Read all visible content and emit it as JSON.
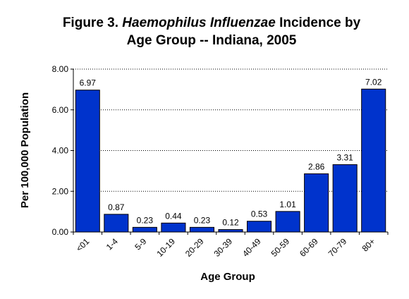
{
  "chart_data": {
    "type": "bar",
    "title": {
      "line1_prefix": "Figure 3.",
      "line1_italic": "Haemophilus Influenzae",
      "line1_suffix": "Incidence by",
      "line2": "Age Group -- Indiana, 2005"
    },
    "xlabel": "Age Group",
    "ylabel": "Per 100,000 Population",
    "categories": [
      "<01",
      "1-4",
      "5-9",
      "10-19",
      "20-29",
      "30-39",
      "40-49",
      "50-59",
      "60-69",
      "70-79",
      "80+"
    ],
    "values": [
      6.97,
      0.87,
      0.23,
      0.44,
      0.23,
      0.12,
      0.53,
      1.01,
      2.86,
      3.31,
      7.02
    ],
    "data_labels": [
      "6.97",
      "0.87",
      "0.23",
      "0.44",
      "0.23",
      "0.12",
      "0.53",
      "1.01",
      "2.86",
      "3.31",
      "7.02"
    ],
    "ylim": [
      0,
      8
    ],
    "yticks": [
      0,
      2,
      4,
      6,
      8
    ],
    "ytick_labels": [
      "0.00",
      "2.00",
      "4.00",
      "6.00",
      "8.00"
    ],
    "grid": true,
    "grid_style": "dotted",
    "legend": false,
    "bar_color": "#0033cc",
    "bar_edge_color": "#000000"
  }
}
